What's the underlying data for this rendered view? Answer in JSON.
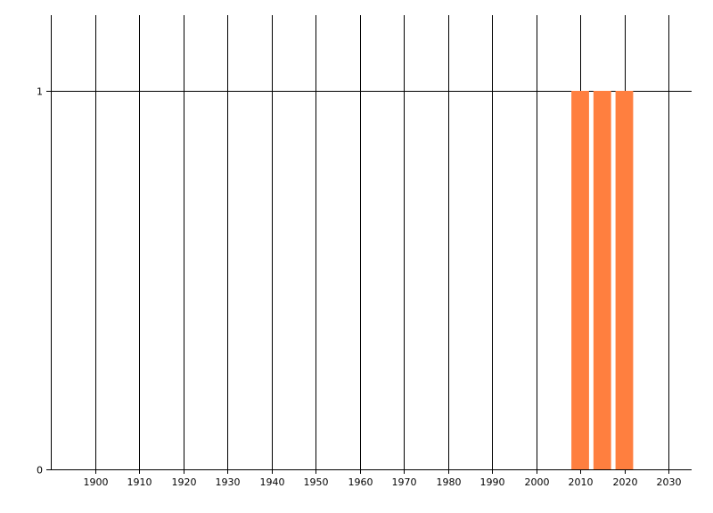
{
  "chart_data": {
    "type": "bar",
    "x": [
      2010,
      2015,
      2020
    ],
    "values": [
      1,
      1,
      1
    ],
    "bar_width_years": 4,
    "xlim": [
      1890,
      2035.25
    ],
    "ylim": [
      0,
      1.2
    ],
    "xticks": [
      1900,
      1910,
      1920,
      1930,
      1940,
      1950,
      1960,
      1970,
      1980,
      1990,
      2000,
      2010,
      2020,
      2030
    ],
    "yticks": [
      0,
      1
    ],
    "grid": true,
    "bar_color": "#FF7F3F",
    "title": "",
    "xlabel": "",
    "ylabel": ""
  }
}
